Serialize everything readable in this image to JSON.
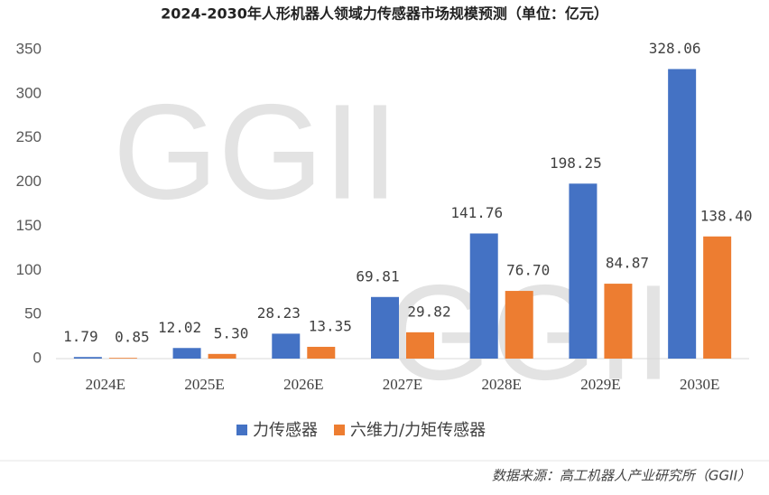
{
  "chart_data": {
    "type": "bar",
    "title": "2024-2030年人形机器人领域力传感器市场规模预测（单位：亿元）",
    "categories": [
      "2024E",
      "2025E",
      "2026E",
      "2027E",
      "2028E",
      "2029E",
      "2030E"
    ],
    "series": [
      {
        "name": "力传感器",
        "color": "#4472c4",
        "values": [
          1.79,
          12.02,
          28.23,
          69.81,
          141.76,
          198.25,
          328.06
        ]
      },
      {
        "name": "六维力/力矩传感器",
        "color": "#ed7d31",
        "values": [
          0.85,
          5.3,
          13.35,
          29.82,
          76.7,
          84.87,
          138.4
        ],
        "value_labels": [
          "0.85",
          "5.30",
          "13.35",
          "29.82",
          "76.70",
          "84.87",
          "138.40"
        ]
      }
    ],
    "ylim": [
      0,
      350
    ],
    "yticks": [
      0,
      50,
      100,
      150,
      200,
      250,
      300,
      350
    ],
    "grid": false,
    "legend": "bottom",
    "watermark": "GGII",
    "source": "数据来源：高工机器人产业研究所（GGII）"
  }
}
